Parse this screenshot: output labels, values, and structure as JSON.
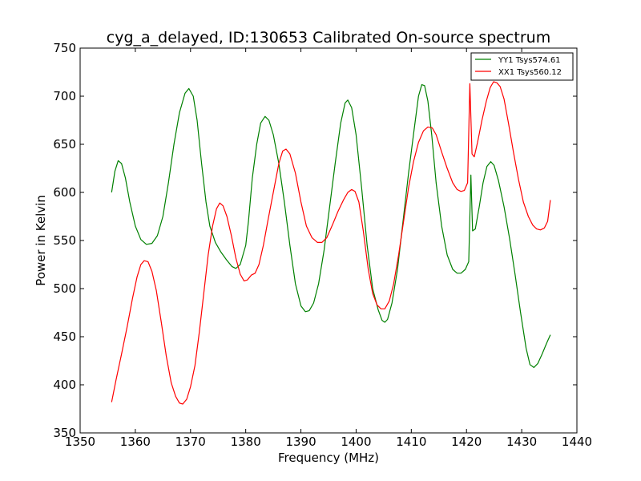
{
  "chart_data": {
    "type": "line",
    "title": "cyg_a_delayed, ID:130653 Calibrated On-source spectrum",
    "xlabel": "Frequency (MHz)",
    "ylabel": "Power in Kelvin",
    "xlim": [
      1350,
      1440
    ],
    "ylim": [
      350,
      750
    ],
    "xticks": [
      "1350",
      "1360",
      "1370",
      "1380",
      "1390",
      "1400",
      "1410",
      "1420",
      "1430",
      "1440"
    ],
    "yticks": [
      "350",
      "400",
      "450",
      "500",
      "550",
      "600",
      "650",
      "700",
      "750"
    ],
    "grid": false,
    "legend_position": "top-right",
    "series": [
      {
        "name": "YY1 Tsys574.61",
        "color": "#008000",
        "points": [
          [
            1355.7,
            600
          ],
          [
            1356.3,
            622
          ],
          [
            1356.9,
            633
          ],
          [
            1357.5,
            630
          ],
          [
            1358.2,
            615
          ],
          [
            1359.0,
            590
          ],
          [
            1360.0,
            565
          ],
          [
            1361.0,
            551
          ],
          [
            1362.0,
            546
          ],
          [
            1363.0,
            547
          ],
          [
            1364.0,
            555
          ],
          [
            1365.0,
            575
          ],
          [
            1366.0,
            610
          ],
          [
            1367.0,
            650
          ],
          [
            1368.0,
            683
          ],
          [
            1369.0,
            703
          ],
          [
            1369.7,
            708
          ],
          [
            1370.5,
            700
          ],
          [
            1371.2,
            675
          ],
          [
            1372.0,
            630
          ],
          [
            1372.8,
            590
          ],
          [
            1373.5,
            565
          ],
          [
            1374.5,
            548
          ],
          [
            1375.5,
            538
          ],
          [
            1376.5,
            530
          ],
          [
            1377.5,
            523
          ],
          [
            1378.2,
            521
          ],
          [
            1379.0,
            525
          ],
          [
            1380.0,
            545
          ],
          [
            1380.5,
            570
          ],
          [
            1381.2,
            615
          ],
          [
            1382.0,
            650
          ],
          [
            1382.7,
            672
          ],
          [
            1383.5,
            679
          ],
          [
            1384.2,
            675
          ],
          [
            1385.0,
            660
          ],
          [
            1386.0,
            630
          ],
          [
            1387.0,
            590
          ],
          [
            1388.0,
            545
          ],
          [
            1389.0,
            505
          ],
          [
            1390.0,
            482
          ],
          [
            1390.8,
            476
          ],
          [
            1391.5,
            477
          ],
          [
            1392.3,
            485
          ],
          [
            1393.2,
            505
          ],
          [
            1394.2,
            540
          ],
          [
            1395.2,
            585
          ],
          [
            1396.2,
            630
          ],
          [
            1397.2,
            672
          ],
          [
            1398.0,
            693
          ],
          [
            1398.5,
            696
          ],
          [
            1399.2,
            688
          ],
          [
            1400.0,
            660
          ],
          [
            1401.0,
            605
          ],
          [
            1402.0,
            545
          ],
          [
            1403.0,
            500
          ],
          [
            1404.0,
            478
          ],
          [
            1404.7,
            467
          ],
          [
            1405.2,
            465
          ],
          [
            1405.7,
            468
          ],
          [
            1406.5,
            485
          ],
          [
            1407.5,
            520
          ],
          [
            1408.5,
            570
          ],
          [
            1409.5,
            620
          ],
          [
            1410.5,
            665
          ],
          [
            1411.3,
            700
          ],
          [
            1411.9,
            712
          ],
          [
            1412.4,
            711
          ],
          [
            1413.0,
            695
          ],
          [
            1413.7,
            660
          ],
          [
            1414.5,
            610
          ],
          [
            1415.5,
            565
          ],
          [
            1416.5,
            535
          ],
          [
            1417.5,
            520
          ],
          [
            1418.3,
            516
          ],
          [
            1419.0,
            516
          ],
          [
            1419.8,
            520
          ],
          [
            1420.4,
            528
          ],
          [
            1420.8,
            618
          ],
          [
            1421.1,
            560
          ],
          [
            1421.6,
            562
          ],
          [
            1422.3,
            585
          ],
          [
            1423.0,
            610
          ],
          [
            1423.7,
            627
          ],
          [
            1424.4,
            632
          ],
          [
            1425.0,
            628
          ],
          [
            1425.8,
            612
          ],
          [
            1426.8,
            585
          ],
          [
            1427.8,
            552
          ],
          [
            1428.8,
            515
          ],
          [
            1429.8,
            475
          ],
          [
            1430.8,
            438
          ],
          [
            1431.5,
            421
          ],
          [
            1432.2,
            418
          ],
          [
            1432.9,
            422
          ],
          [
            1433.7,
            432
          ],
          [
            1434.5,
            443
          ],
          [
            1435.2,
            452
          ]
        ]
      },
      {
        "name": "XX1 Tsys560.12",
        "color": "#ff0000",
        "points": [
          [
            1355.7,
            382
          ],
          [
            1356.5,
            405
          ],
          [
            1357.5,
            432
          ],
          [
            1358.5,
            460
          ],
          [
            1359.5,
            490
          ],
          [
            1360.3,
            512
          ],
          [
            1361.0,
            525
          ],
          [
            1361.6,
            529
          ],
          [
            1362.3,
            528
          ],
          [
            1363.0,
            518
          ],
          [
            1363.8,
            498
          ],
          [
            1364.7,
            465
          ],
          [
            1365.6,
            430
          ],
          [
            1366.5,
            402
          ],
          [
            1367.3,
            388
          ],
          [
            1368.0,
            381
          ],
          [
            1368.6,
            380
          ],
          [
            1369.3,
            385
          ],
          [
            1370.0,
            398
          ],
          [
            1370.8,
            420
          ],
          [
            1371.6,
            455
          ],
          [
            1372.4,
            495
          ],
          [
            1373.2,
            535
          ],
          [
            1374.0,
            565
          ],
          [
            1374.7,
            583
          ],
          [
            1375.3,
            589
          ],
          [
            1375.9,
            586
          ],
          [
            1376.6,
            575
          ],
          [
            1377.4,
            555
          ],
          [
            1378.2,
            532
          ],
          [
            1379.0,
            515
          ],
          [
            1379.7,
            508
          ],
          [
            1380.3,
            509
          ],
          [
            1381.0,
            514
          ],
          [
            1381.7,
            516
          ],
          [
            1382.4,
            525
          ],
          [
            1383.2,
            545
          ],
          [
            1384.0,
            570
          ],
          [
            1385.0,
            600
          ],
          [
            1386.0,
            630
          ],
          [
            1386.7,
            643
          ],
          [
            1387.3,
            645
          ],
          [
            1388.0,
            640
          ],
          [
            1389.0,
            620
          ],
          [
            1390.0,
            590
          ],
          [
            1391.0,
            565
          ],
          [
            1392.0,
            553
          ],
          [
            1393.0,
            548
          ],
          [
            1393.8,
            548
          ],
          [
            1394.7,
            553
          ],
          [
            1395.7,
            566
          ],
          [
            1396.7,
            580
          ],
          [
            1397.7,
            592
          ],
          [
            1398.5,
            600
          ],
          [
            1399.2,
            603
          ],
          [
            1399.8,
            601
          ],
          [
            1400.5,
            590
          ],
          [
            1401.3,
            560
          ],
          [
            1402.2,
            520
          ],
          [
            1403.0,
            495
          ],
          [
            1403.8,
            483
          ],
          [
            1404.5,
            479
          ],
          [
            1405.2,
            479
          ],
          [
            1406.0,
            487
          ],
          [
            1406.8,
            505
          ],
          [
            1407.7,
            535
          ],
          [
            1408.6,
            570
          ],
          [
            1409.5,
            605
          ],
          [
            1410.4,
            632
          ],
          [
            1411.3,
            652
          ],
          [
            1412.2,
            664
          ],
          [
            1413.0,
            668
          ],
          [
            1413.8,
            667
          ],
          [
            1414.5,
            660
          ],
          [
            1415.5,
            642
          ],
          [
            1416.5,
            625
          ],
          [
            1417.5,
            610
          ],
          [
            1418.3,
            603
          ],
          [
            1419.0,
            601
          ],
          [
            1419.6,
            602
          ],
          [
            1420.2,
            610
          ],
          [
            1420.6,
            713
          ],
          [
            1421.0,
            640
          ],
          [
            1421.4,
            637
          ],
          [
            1422.0,
            652
          ],
          [
            1422.8,
            675
          ],
          [
            1423.6,
            695
          ],
          [
            1424.3,
            709
          ],
          [
            1424.9,
            715
          ],
          [
            1425.5,
            714
          ],
          [
            1426.1,
            710
          ],
          [
            1426.8,
            697
          ],
          [
            1427.6,
            672
          ],
          [
            1428.5,
            642
          ],
          [
            1429.4,
            614
          ],
          [
            1430.3,
            590
          ],
          [
            1431.2,
            575
          ],
          [
            1432.0,
            566
          ],
          [
            1432.7,
            562
          ],
          [
            1433.4,
            561
          ],
          [
            1434.1,
            563
          ],
          [
            1434.7,
            570
          ],
          [
            1435.2,
            592
          ]
        ]
      }
    ]
  }
}
